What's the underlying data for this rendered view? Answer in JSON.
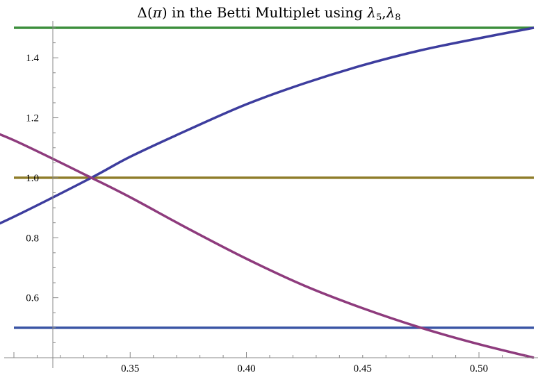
{
  "chart_data": {
    "type": "line",
    "title": "Δ(π) in the Betti Multiplet using λ5,λ8",
    "title_parts": {
      "prefix": "Δ(",
      "pi": "π",
      "middle": ") in the Betti Multiplet using ",
      "lambda": "λ",
      "sub1": "5",
      "comma": ",",
      "sub2": "8"
    },
    "xlabel": "",
    "ylabel": "",
    "xlim": [
      0.3,
      0.5236
    ],
    "ylim": [
      0.4,
      1.5
    ],
    "x_ticks": [
      "0.35",
      "0.40",
      "0.45",
      "0.50"
    ],
    "y_ticks": [
      "0.6",
      "0.8",
      "1.0",
      "1.2",
      "1.4"
    ],
    "grid": false,
    "series": [
      {
        "color": "#3d8f3d",
        "x": [
          0.3,
          0.5236
        ],
        "y": [
          1.5,
          1.5
        ]
      },
      {
        "color": "#8f7d2a",
        "x": [
          0.3,
          0.5236
        ],
        "y": [
          1.0,
          1.0
        ]
      },
      {
        "color": "#3a55a5",
        "x": [
          0.3,
          0.5236
        ],
        "y": [
          0.5,
          0.5
        ]
      },
      {
        "color": "#3d3d9e",
        "x": [
          0.28,
          0.3,
          0.3333,
          0.35,
          0.375,
          0.4,
          0.425,
          0.45,
          0.475,
          0.5,
          0.5236
        ],
        "y": [
          0.8,
          0.87,
          1.0,
          1.07,
          1.16,
          1.245,
          1.315,
          1.375,
          1.425,
          1.465,
          1.5
        ]
      },
      {
        "color": "#8e3b7d",
        "x": [
          0.28,
          0.3,
          0.3333,
          0.35,
          0.375,
          0.4,
          0.425,
          0.45,
          0.475,
          0.5,
          0.5236
        ],
        "y": [
          1.185,
          1.125,
          1.0,
          0.935,
          0.83,
          0.73,
          0.64,
          0.565,
          0.5,
          0.445,
          0.4
        ]
      }
    ]
  }
}
